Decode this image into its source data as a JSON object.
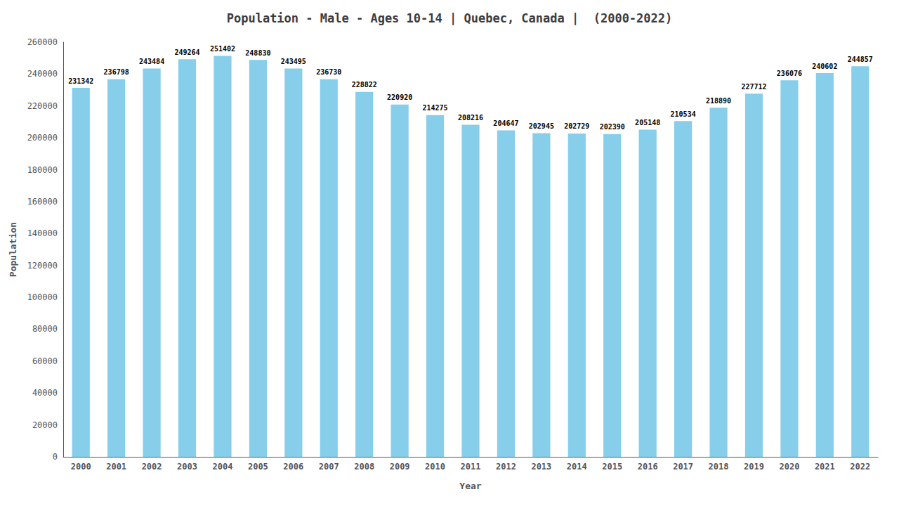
{
  "chart_data": {
    "type": "bar",
    "title": "Population - Male - Ages 10-14 | Quebec, Canada |  (2000-2022)",
    "x_label": "Year",
    "y_label": "Population",
    "categories": [
      "2000",
      "2001",
      "2002",
      "2003",
      "2004",
      "2005",
      "2006",
      "2007",
      "2008",
      "2009",
      "2010",
      "2011",
      "2012",
      "2013",
      "2014",
      "2015",
      "2016",
      "2017",
      "2018",
      "2019",
      "2020",
      "2021",
      "2022"
    ],
    "values": [
      231342,
      236798,
      243484,
      249264,
      251402,
      248830,
      243495,
      236730,
      228822,
      220920,
      214275,
      208216,
      204647,
      202945,
      202729,
      202390,
      205148,
      210534,
      218890,
      227712,
      236076,
      240602,
      244857
    ],
    "color": "#87CEEB",
    "ylim": [
      0,
      260000
    ],
    "yticks": [
      0,
      20000,
      40000,
      60000,
      80000,
      100000,
      120000,
      140000,
      160000,
      180000,
      200000,
      220000,
      240000,
      260000
    ],
    "grid": false,
    "data_labels": true
  }
}
